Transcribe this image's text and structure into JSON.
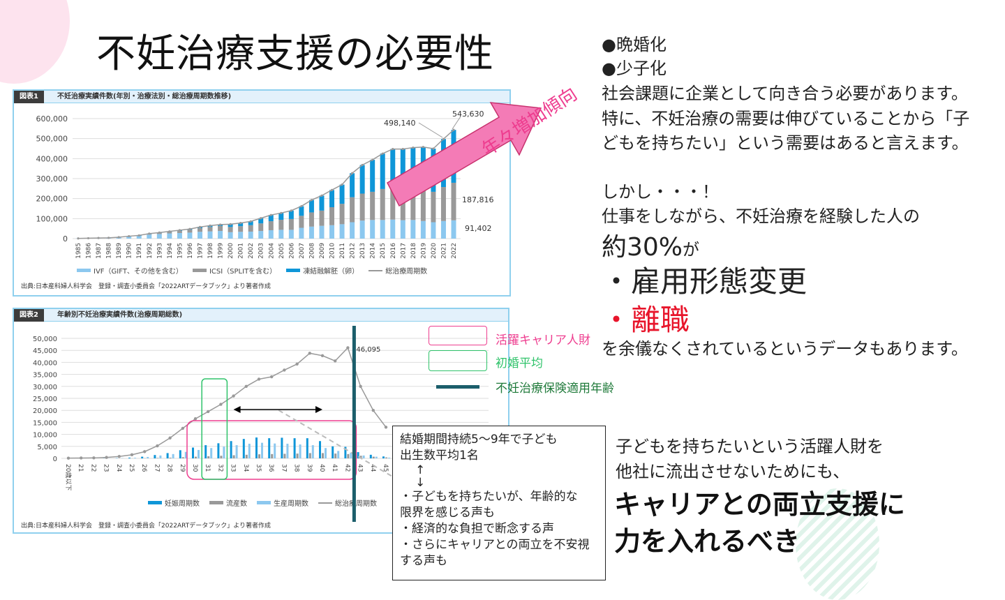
{
  "title": "不妊治療支援の必要性",
  "right_panel": {
    "bullets": [
      "●晩婚化",
      "●少子化"
    ],
    "para1": [
      "社会課題に企業として向き合う必要があります。",
      "特に、不妊治療の需要は伸びていることから「子",
      "どもを持ちたい」という需要はあると言えます。"
    ],
    "but": "しかし・・・！",
    "line2": "仕事をしながら、不妊治療を経験した人の",
    "pct": "約30%",
    "pct_suffix": "が",
    "item1": "・雇用形態変更",
    "item2": "・離職",
    "line3": "を余儀なくされているというデータもあります。",
    "conclusion": [
      "子どもを持ちたいという活躍人財を",
      "他社に流出させないためにも、"
    ],
    "emphasis": [
      "キャリアとの両立支援に",
      "力を入れるべき"
    ]
  },
  "arrow_label": "年々増加傾向",
  "annotations": {
    "legend": [
      {
        "label": "活躍キャリア人財",
        "color": "#ee3d8f"
      },
      {
        "label": "初婚平均",
        "color": "#2fc36a"
      },
      {
        "label": "不妊治療保険適用年齢",
        "color": "#1f7a3a"
      }
    ],
    "callout": [
      "結婚期間持続5〜9年で子ども",
      "出生数平均1名",
      "↑",
      "↓",
      "・子どもを持ちたいが、年齢的な",
      "限界を感じる声も",
      "・経済的な負担で断念する声",
      "・さらにキャリアとの両立を不安視",
      "する声も"
    ]
  },
  "colors": {
    "pink": "#f47bb6",
    "teal": "#1b5e6b",
    "ivf": "#8cc8ef",
    "icsi": "#999999",
    "frozen": "#0f96d8",
    "line": "#999999"
  },
  "chart_data": [
    {
      "type": "bar",
      "tag": "図表1",
      "title": "不妊治療実績件数(年別・治療法別・総治療周期数推移)",
      "source": "出典:日本産科婦人科学会　登録・調査小委員会「2022ARTデータブック」より著者作成",
      "y_ticks": [
        "0",
        "100,000",
        "200,000",
        "300,000",
        "400,000",
        "500,000",
        "600,000"
      ],
      "ylim": [
        0,
        600000
      ],
      "categories": [
        "1985",
        "1986",
        "1987",
        "1988",
        "1989",
        "1990",
        "1991",
        "1992",
        "1993",
        "1994",
        "1995",
        "1996",
        "1997",
        "1998",
        "1999",
        "2000",
        "2001",
        "2002",
        "2003",
        "2004",
        "2005",
        "2006",
        "2007",
        "2008",
        "2009",
        "2010",
        "2011",
        "2012",
        "2013",
        "2014",
        "2015",
        "2016",
        "2017",
        "2018",
        "2019",
        "2020",
        "2021",
        "2022"
      ],
      "series": [
        {
          "name": "IVF（GIFT、その他を含む）",
          "values": [
            1000,
            2000,
            3000,
            4000,
            6000,
            10000,
            14000,
            20000,
            23000,
            26000,
            28000,
            30000,
            34000,
            36000,
            38000,
            32000,
            34000,
            35000,
            38000,
            42000,
            44000,
            44000,
            54000,
            60000,
            64000,
            67000,
            72000,
            82000,
            90000,
            93000,
            93000,
            95000,
            92000,
            93000,
            88000,
            82000,
            88000,
            91402
          ]
        },
        {
          "name": "ICSI（SPLITを含む）",
          "values": [
            0,
            0,
            0,
            0,
            0,
            0,
            0,
            2000,
            5000,
            8000,
            10000,
            14000,
            18000,
            22000,
            25000,
            26000,
            28000,
            32000,
            38000,
            45000,
            50000,
            54000,
            60000,
            71000,
            76000,
            90000,
            102000,
            125000,
            135000,
            141000,
            155000,
            161000,
            158000,
            158000,
            160000,
            152000,
            170000,
            187816
          ]
        },
        {
          "name": "凍結融解胚（卵）",
          "values": [
            0,
            0,
            0,
            0,
            1000,
            2000,
            2000,
            3000,
            2000,
            2000,
            4000,
            4000,
            6000,
            7000,
            7000,
            14000,
            16000,
            19000,
            26000,
            31000,
            34000,
            42000,
            48000,
            62000,
            75000,
            86000,
            96000,
            120000,
            143000,
            160000,
            177000,
            192000,
            198000,
            204000,
            210000,
            216000,
            240140,
            264412
          ]
        },
        {
          "name": "総治療周期数",
          "values": [
            1000,
            2000,
            3000,
            4000,
            7000,
            12000,
            16000,
            25000,
            30000,
            36000,
            42000,
            48000,
            58000,
            65000,
            70000,
            72000,
            78000,
            86000,
            102000,
            118000,
            128000,
            140000,
            162000,
            193000,
            215000,
            243000,
            270000,
            327000,
            368000,
            394000,
            425000,
            448000,
            448000,
            455000,
            458000,
            450000,
            498140,
            543630
          ]
        }
      ],
      "data_labels": [
        "498,140",
        "543,630",
        "187,816",
        "91,402"
      ]
    },
    {
      "type": "bar",
      "tag": "図表2",
      "title": "年齢別不妊治療実績件数(治療周期総数)",
      "source": "出典:日本産科婦人科学会　登録・調査小委員会「2022ARTデータブック」より著者作成",
      "y_ticks": [
        "0",
        "5,000",
        "10,000",
        "15,000",
        "20,000",
        "25,000",
        "30,000",
        "35,000",
        "40,000",
        "45,000",
        "50,000"
      ],
      "ylim": [
        0,
        50000
      ],
      "categories": [
        "20歳以下",
        "21",
        "22",
        "23",
        "24",
        "25",
        "26",
        "27",
        "28",
        "29",
        "30",
        "31",
        "32",
        "33",
        "34",
        "35",
        "36",
        "37",
        "38",
        "39",
        "40",
        "41",
        "42",
        "43",
        "44",
        "45"
      ],
      "series": [
        {
          "name": "妊娠周期数",
          "values": [
            0,
            0,
            0,
            50,
            100,
            300,
            700,
            1400,
            2200,
            3400,
            4500,
            5500,
            6300,
            7200,
            8100,
            8700,
            8400,
            8600,
            8400,
            8400,
            7200,
            5000,
            4800,
            2600,
            1500,
            800
          ]
        },
        {
          "name": "流産数",
          "values": [
            0,
            0,
            0,
            0,
            0,
            50,
            100,
            200,
            300,
            500,
            700,
            900,
            1100,
            1300,
            1500,
            1700,
            1800,
            1900,
            2000,
            2200,
            2200,
            2000,
            1800,
            1100,
            700,
            400
          ]
        },
        {
          "name": "生産周期数",
          "values": [
            0,
            0,
            0,
            50,
            100,
            250,
            600,
            1200,
            1800,
            2700,
            3500,
            4300,
            4900,
            5500,
            6100,
            6500,
            6200,
            6100,
            5800,
            5500,
            4300,
            3100,
            2400,
            1200,
            700,
            300
          ]
        },
        {
          "name": "総治療周期数",
          "values": [
            100,
            150,
            200,
            400,
            800,
            1500,
            2800,
            5200,
            8500,
            12500,
            16500,
            19500,
            22500,
            26000,
            30000,
            33000,
            34000,
            36800,
            39300,
            43800,
            42800,
            40600,
            46095,
            30000,
            20000,
            13000
          ]
        }
      ],
      "data_labels": [
        "46,095"
      ]
    }
  ]
}
